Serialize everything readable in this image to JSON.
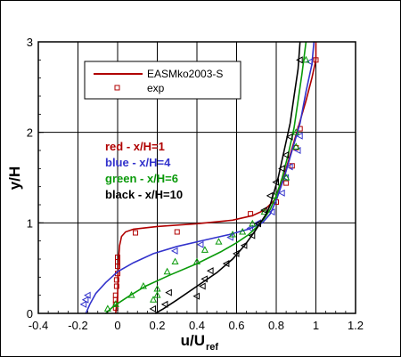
{
  "chart_data": {
    "type": "line",
    "xlim": [
      -0.4,
      1.2
    ],
    "ylim": [
      0,
      3
    ],
    "xticks": [
      "-0.4",
      "-0.2",
      "0",
      "0.2",
      "0.4",
      "0.6",
      "0.8",
      "1",
      "1.2"
    ],
    "yticks": [
      "0",
      "1",
      "2",
      "3"
    ],
    "xlabel_main": "u/U",
    "xlabel_sub": "ref",
    "ylabel": "y/H",
    "grid": true,
    "legend": {
      "placement": "top-left",
      "entries": [
        {
          "label": "EASMko2003-S",
          "kind": "line",
          "color": "#b00000"
        },
        {
          "label": "exp",
          "kind": "marker",
          "color": "#b00000"
        }
      ]
    },
    "annotations": [
      {
        "text": "red - x/H=1",
        "color": "#b00000"
      },
      {
        "text": "blue - x/H=4",
        "color": "#3333cc"
      },
      {
        "text": "green - x/H=6",
        "color": "#0a9a0a"
      },
      {
        "text": "black - x/H=10",
        "color": "#000000"
      }
    ],
    "series": [
      {
        "color": "#b00000",
        "marker": "square",
        "line": [
          [
            -0.01,
            0
          ],
          [
            -0.005,
            0.1
          ],
          [
            0,
            0.2
          ],
          [
            0.002,
            0.4
          ],
          [
            0.005,
            0.6
          ],
          [
            0.01,
            0.75
          ],
          [
            0.02,
            0.85
          ],
          [
            0.04,
            0.9
          ],
          [
            0.08,
            0.93
          ],
          [
            0.2,
            0.96
          ],
          [
            0.4,
            0.99
          ],
          [
            0.58,
            1.03
          ],
          [
            0.68,
            1.08
          ],
          [
            0.74,
            1.14
          ],
          [
            0.79,
            1.25
          ],
          [
            0.83,
            1.45
          ],
          [
            0.87,
            1.75
          ],
          [
            0.91,
            2.05
          ],
          [
            0.95,
            2.35
          ],
          [
            0.98,
            2.6
          ],
          [
            1.0,
            2.8
          ],
          [
            1.0,
            3.0
          ]
        ],
        "points": [
          [
            -0.01,
            0.06
          ],
          [
            -0.01,
            0.1
          ],
          [
            -0.01,
            0.15
          ],
          [
            -0.01,
            0.2
          ],
          [
            -0.005,
            0.3
          ],
          [
            -0.005,
            0.37
          ],
          [
            0.0,
            0.44
          ],
          [
            0.0,
            0.52
          ],
          [
            0.0,
            0.57
          ],
          [
            0.0,
            0.62
          ],
          [
            0.09,
            0.89
          ],
          [
            0.3,
            0.9
          ],
          [
            0.67,
            1.1
          ],
          [
            0.8,
            1.23
          ],
          [
            0.85,
            1.44
          ],
          [
            0.88,
            1.63
          ],
          [
            0.9,
            1.83
          ],
          [
            0.92,
            2.04
          ],
          [
            1.0,
            2.8
          ]
        ]
      },
      {
        "color": "#3333cc",
        "marker": "triangle-left",
        "line": [
          [
            -0.16,
            0
          ],
          [
            -0.14,
            0.1
          ],
          [
            -0.11,
            0.22
          ],
          [
            -0.06,
            0.34
          ],
          [
            0,
            0.46
          ],
          [
            0.08,
            0.56
          ],
          [
            0.18,
            0.66
          ],
          [
            0.3,
            0.74
          ],
          [
            0.44,
            0.81
          ],
          [
            0.56,
            0.87
          ],
          [
            0.66,
            0.93
          ],
          [
            0.73,
            1.0
          ],
          [
            0.77,
            1.1
          ],
          [
            0.8,
            1.25
          ],
          [
            0.84,
            1.5
          ],
          [
            0.88,
            1.8
          ],
          [
            0.92,
            2.1
          ],
          [
            0.95,
            2.45
          ],
          [
            0.98,
            2.75
          ],
          [
            0.99,
            3.0
          ]
        ],
        "points": [
          [
            -0.17,
            0.1
          ],
          [
            -0.16,
            0.15
          ],
          [
            -0.15,
            0.2
          ],
          [
            0.29,
            0.69
          ],
          [
            0.42,
            0.76
          ],
          [
            0.57,
            0.84
          ],
          [
            0.67,
            0.94
          ],
          [
            0.71,
            1.0
          ],
          [
            0.78,
            1.12
          ],
          [
            0.83,
            1.33
          ],
          [
            0.85,
            1.5
          ],
          [
            0.87,
            1.62
          ],
          [
            0.91,
            1.8
          ],
          [
            0.92,
            1.96
          ],
          [
            0.97,
            2.78
          ]
        ]
      },
      {
        "color": "#0a9a0a",
        "marker": "triangle-up",
        "line": [
          [
            -0.06,
            0
          ],
          [
            -0.02,
            0.08
          ],
          [
            0.05,
            0.18
          ],
          [
            0.14,
            0.3
          ],
          [
            0.26,
            0.42
          ],
          [
            0.4,
            0.55
          ],
          [
            0.52,
            0.68
          ],
          [
            0.6,
            0.78
          ],
          [
            0.66,
            0.87
          ],
          [
            0.7,
            0.95
          ],
          [
            0.74,
            1.05
          ],
          [
            0.77,
            1.15
          ],
          [
            0.8,
            1.3
          ],
          [
            0.83,
            1.5
          ],
          [
            0.86,
            1.75
          ],
          [
            0.89,
            2.05
          ],
          [
            0.91,
            2.35
          ],
          [
            0.93,
            2.65
          ],
          [
            0.95,
            3.0
          ]
        ],
        "points": [
          [
            -0.05,
            0.05
          ],
          [
            -0.01,
            0.1
          ],
          [
            0.07,
            0.2
          ],
          [
            0.13,
            0.3
          ],
          [
            0.18,
            0.15
          ],
          [
            0.2,
            0.2
          ],
          [
            0.2,
            0.27
          ],
          [
            0.25,
            0.46
          ],
          [
            0.29,
            0.57
          ],
          [
            0.4,
            0.57
          ],
          [
            0.44,
            0.7
          ],
          [
            0.51,
            0.79
          ],
          [
            0.58,
            0.87
          ],
          [
            0.63,
            0.9
          ],
          [
            0.68,
            0.99
          ],
          [
            0.74,
            1.12
          ],
          [
            0.79,
            1.3
          ],
          [
            0.85,
            1.5
          ],
          [
            0.9,
            1.84
          ],
          [
            0.9,
            2.0
          ],
          [
            0.95,
            2.8
          ]
        ]
      },
      {
        "color": "#000000",
        "marker": "triangle-left",
        "line": [
          [
            0.19,
            0
          ],
          [
            0.23,
            0.05
          ],
          [
            0.3,
            0.15
          ],
          [
            0.4,
            0.3
          ],
          [
            0.5,
            0.45
          ],
          [
            0.58,
            0.6
          ],
          [
            0.64,
            0.75
          ],
          [
            0.69,
            0.9
          ],
          [
            0.72,
            1.0
          ],
          [
            0.75,
            1.1
          ],
          [
            0.77,
            1.2
          ],
          [
            0.79,
            1.35
          ],
          [
            0.81,
            1.5
          ],
          [
            0.84,
            1.8
          ],
          [
            0.87,
            2.1
          ],
          [
            0.89,
            2.4
          ],
          [
            0.91,
            2.7
          ],
          [
            0.92,
            3.0
          ]
        ],
        "points": [
          [
            0.18,
            0.05
          ],
          [
            0.24,
            0.1
          ],
          [
            0.26,
            0.23
          ],
          [
            0.4,
            0.19
          ],
          [
            0.43,
            0.3
          ],
          [
            0.44,
            0.38
          ],
          [
            0.47,
            0.47
          ],
          [
            0.55,
            0.55
          ],
          [
            0.6,
            0.66
          ],
          [
            0.64,
            0.75
          ],
          [
            0.68,
            0.86
          ],
          [
            0.71,
            0.99
          ],
          [
            0.74,
            1.14
          ],
          [
            0.77,
            1.3
          ],
          [
            0.8,
            1.45
          ],
          [
            0.83,
            1.6
          ],
          [
            0.85,
            1.75
          ],
          [
            0.87,
            1.95
          ],
          [
            0.92,
            2.8
          ]
        ]
      }
    ]
  }
}
